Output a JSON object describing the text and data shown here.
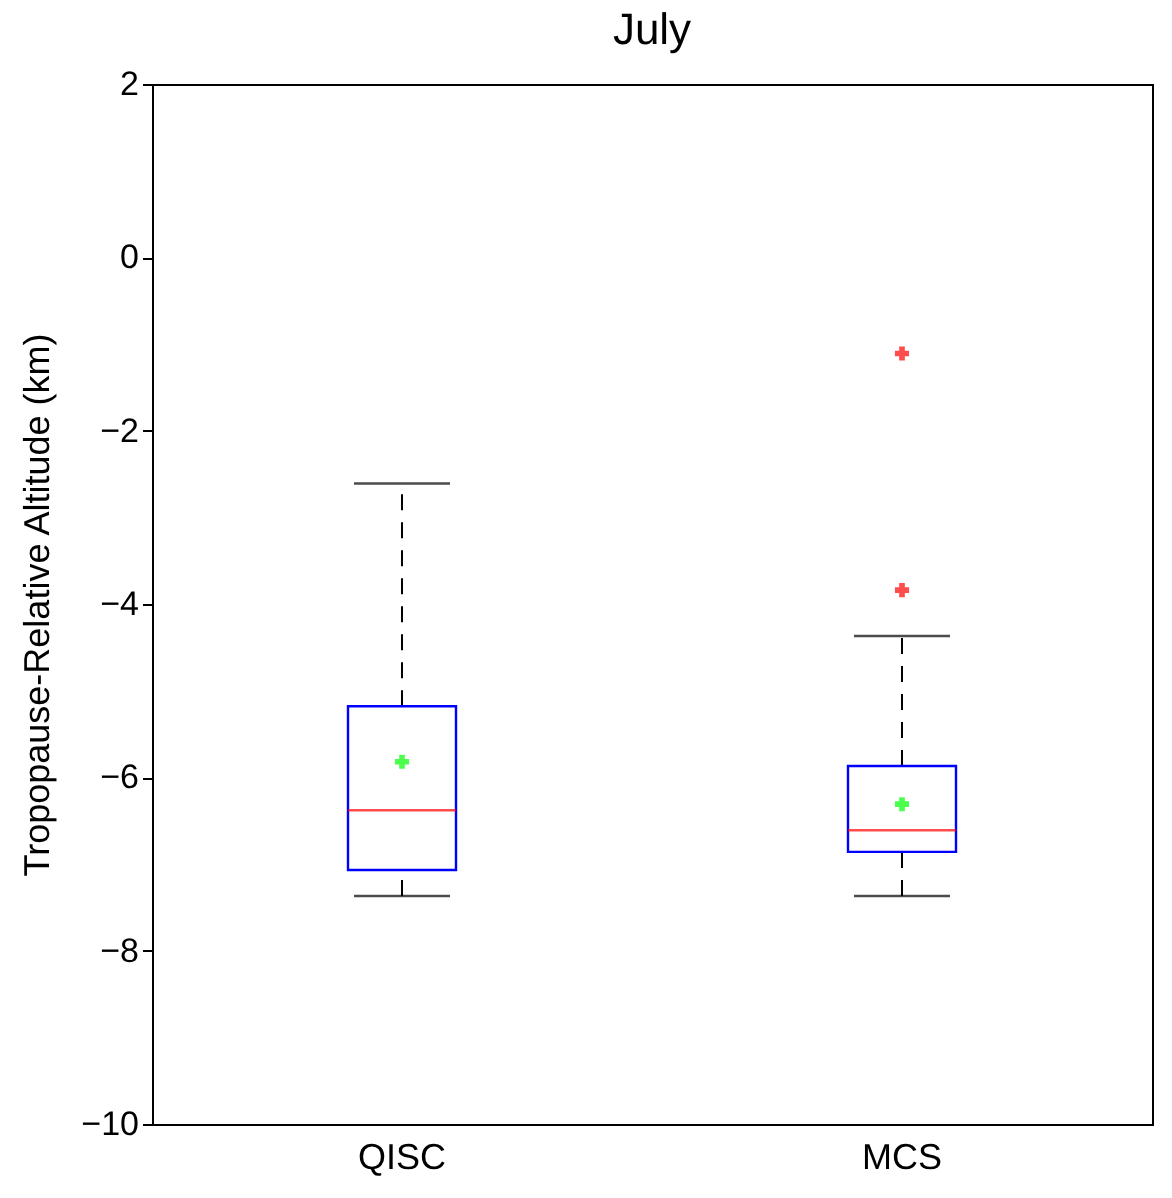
{
  "chart_data": {
    "type": "box",
    "title": "July",
    "ylabel": "Tropopause-Relative Altitude (km)",
    "categories": [
      "QISC",
      "MCS"
    ],
    "series": [
      {
        "color": "#0000ff",
        "boxes": [
          {
            "low": -7.37,
            "q1": -7.07,
            "median": -6.38,
            "q3": -5.18,
            "high": -2.61,
            "mean": -5.82
          },
          {
            "low": -7.37,
            "q1": -6.86,
            "median": -6.61,
            "q3": -5.87,
            "high": -4.37,
            "mean": -6.31,
            "outliers": [
              -1.11,
              -3.84
            ]
          }
        ]
      }
    ],
    "ylim": [
      -10,
      2
    ],
    "yticks": [
      -10,
      -8,
      -6,
      -4,
      -2,
      0,
      2
    ],
    "grid": false
  }
}
